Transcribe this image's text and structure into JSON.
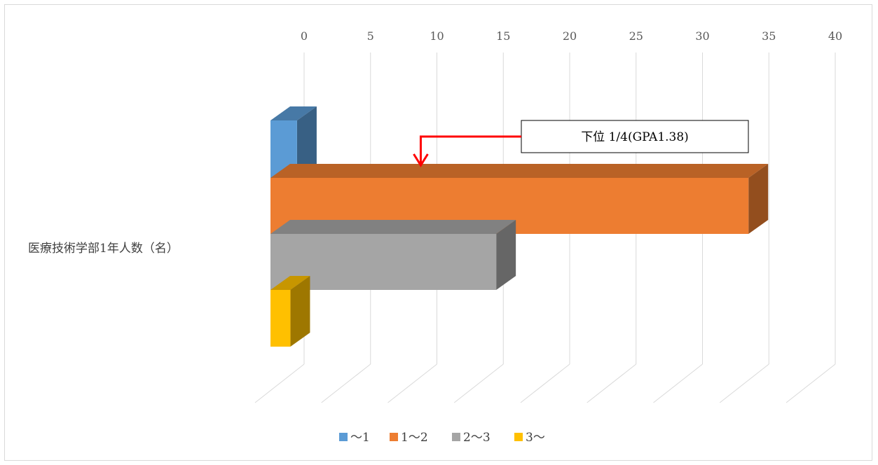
{
  "chart_data": {
    "type": "bar",
    "orientation": "horizontal",
    "style": "3d-clustered",
    "categories": [
      "医療技術学部1年人数（名）"
    ],
    "series": [
      {
        "name": "～1",
        "values": [
          2
        ],
        "color": "#5b9bd5"
      },
      {
        "name": "1～2",
        "values": [
          36
        ],
        "color": "#ed7d31"
      },
      {
        "name": "2～3",
        "values": [
          17
        ],
        "color": "#a5a5a5"
      },
      {
        "name": "3～",
        "values": [
          1.5
        ],
        "color": "#ffc000"
      }
    ],
    "xlim": [
      0,
      40
    ],
    "xticks": [
      "0",
      "5",
      "10",
      "15",
      "20",
      "25",
      "30",
      "35",
      "40"
    ],
    "grid": true,
    "legend": "bottom",
    "annotation": {
      "text": "下位 1/4(GPA1.38)",
      "x": 11,
      "arrow_color": "#ff0000"
    }
  }
}
